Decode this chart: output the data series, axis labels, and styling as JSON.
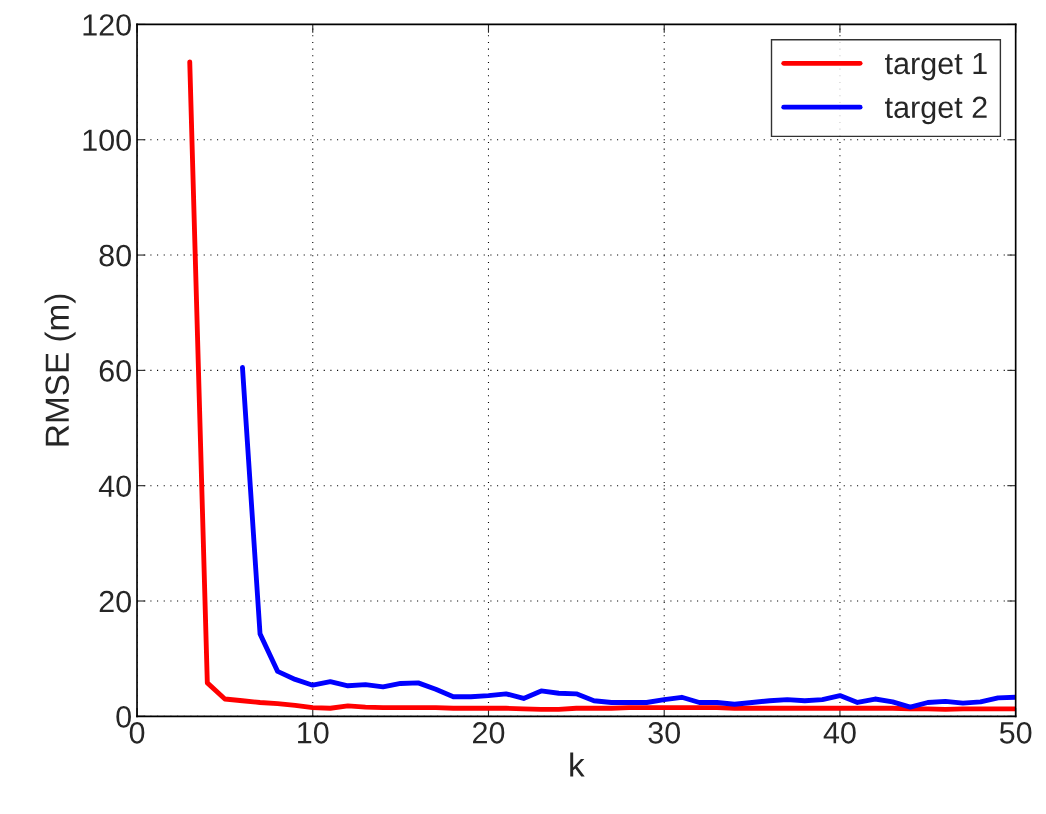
{
  "chart_data": {
    "type": "line",
    "xlabel": "k",
    "ylabel": "RMSE (m)",
    "xlim": [
      0,
      50
    ],
    "xticks": [
      0,
      10,
      20,
      30,
      40,
      50
    ],
    "ylim": [
      0,
      120
    ],
    "yticks": [
      0,
      20,
      40,
      60,
      80,
      100,
      120
    ],
    "grid": true,
    "legend": "top right",
    "marker": "none",
    "line_style": "solid",
    "series": [
      {
        "name": "target 1",
        "color": "#ff0000",
        "x": [
          3,
          4,
          5,
          6,
          7,
          8,
          9,
          10,
          11,
          12,
          13,
          14,
          15,
          16,
          17,
          18,
          19,
          20,
          21,
          22,
          23,
          24,
          25,
          26,
          27,
          28,
          29,
          30,
          31,
          32,
          33,
          34,
          35,
          36,
          37,
          38,
          39,
          40,
          41,
          42,
          43,
          44,
          45,
          46,
          47,
          48,
          49,
          50
        ],
        "values": [
          113.5,
          5.8,
          3.0,
          2.7,
          2.4,
          2.2,
          1.9,
          1.5,
          1.4,
          1.8,
          1.6,
          1.5,
          1.5,
          1.5,
          1.5,
          1.4,
          1.4,
          1.4,
          1.4,
          1.3,
          1.2,
          1.2,
          1.4,
          1.4,
          1.4,
          1.5,
          1.5,
          1.5,
          1.5,
          1.5,
          1.5,
          1.4,
          1.4,
          1.4,
          1.4,
          1.4,
          1.4,
          1.4,
          1.4,
          1.4,
          1.4,
          1.3,
          1.3,
          1.2,
          1.3,
          1.3,
          1.3,
          1.3
        ]
      },
      {
        "name": "target 2",
        "color": "#0000ff",
        "x": [
          6,
          7,
          8,
          9,
          10,
          11,
          12,
          13,
          14,
          15,
          16,
          17,
          18,
          19,
          20,
          21,
          22,
          23,
          24,
          25,
          26,
          27,
          28,
          29,
          30,
          31,
          32,
          33,
          34,
          35,
          36,
          37,
          38,
          39,
          40,
          41,
          42,
          43,
          44,
          45,
          46,
          47,
          48,
          49,
          50
        ],
        "values": [
          60.5,
          14.3,
          7.8,
          6.4,
          5.4,
          6.0,
          5.3,
          5.5,
          5.1,
          5.7,
          5.8,
          4.7,
          3.4,
          3.4,
          3.6,
          3.9,
          3.1,
          4.4,
          4.0,
          3.9,
          2.7,
          2.4,
          2.4,
          2.4,
          2.9,
          3.3,
          2.4,
          2.4,
          2.1,
          2.4,
          2.7,
          2.9,
          2.7,
          2.9,
          3.6,
          2.4,
          3.0,
          2.5,
          1.6,
          2.4,
          2.6,
          2.3,
          2.5,
          3.2,
          3.3
        ]
      }
    ]
  }
}
